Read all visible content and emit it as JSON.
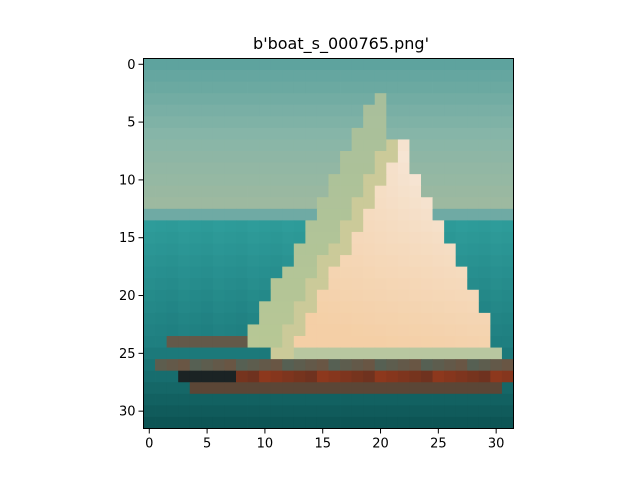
{
  "figure": {
    "title": "b'boat_s_000765.png'"
  },
  "image": {
    "grid_width": 32,
    "grid_height": 32,
    "subject": "sailboat on sea",
    "palette": {
      "sky_top": "#5ea39e",
      "sky_mid": "#86b5a8",
      "sky_low": "#9db9a0",
      "horizon": "#6faaa4",
      "sea": "#2e9c9a",
      "sea_dark": "#1f7f80",
      "sea_bottom": "#0d5555",
      "sail_left": "#b9c894",
      "sail_bright": "#f6e9dc",
      "sail_warm": "#f4cfa6",
      "hull_red": "#9a3a1c",
      "hull_dark": "#1b2324",
      "deck": "#b8c7a0"
    }
  },
  "axes": {
    "x_ticks": [
      "0",
      "5",
      "10",
      "15",
      "20",
      "25",
      "30"
    ],
    "y_ticks": [
      "0",
      "5",
      "10",
      "15",
      "20",
      "25",
      "30"
    ]
  }
}
